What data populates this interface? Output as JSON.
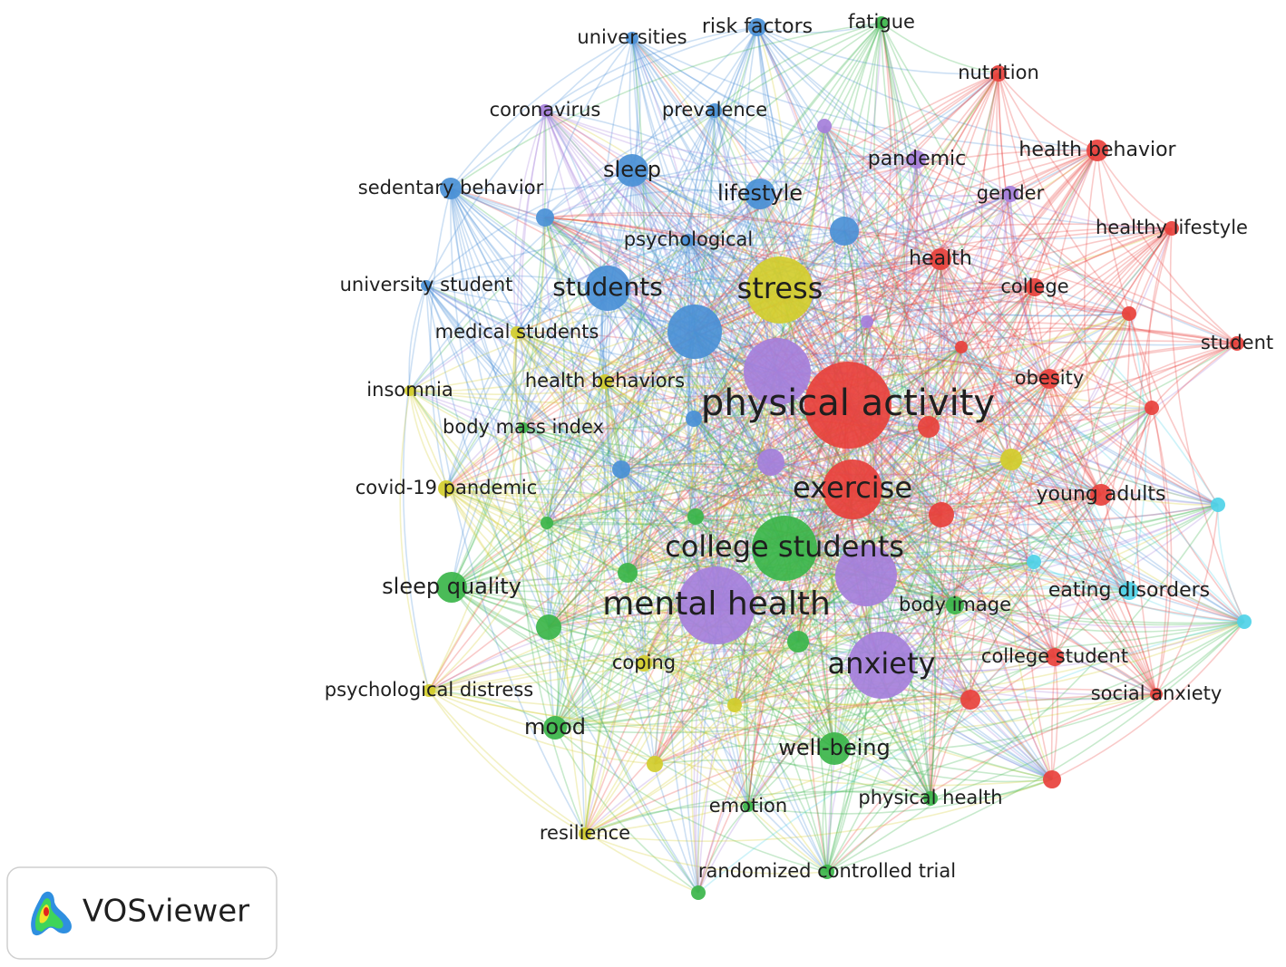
{
  "nodes": [
    {
      "label": "physical activity",
      "color": "#e8413c"
    },
    {
      "label": "exercise",
      "color": "#e8413c"
    },
    {
      "label": "stress",
      "color": "#d3cd2c"
    },
    {
      "label": "mental health",
      "color": "#a57fdb"
    },
    {
      "label": "college students",
      "color": "#3bb54a"
    },
    {
      "label": "anxiety",
      "color": "#a57fdb"
    },
    {
      "label": "students",
      "color": "#4a90d6"
    },
    {
      "label": "sleep",
      "color": "#4a90d6"
    },
    {
      "label": "lifestyle",
      "color": "#4a90d6"
    },
    {
      "label": "sleep quality",
      "color": "#3bb54a"
    },
    {
      "label": "mood",
      "color": "#3bb54a"
    },
    {
      "label": "well-being",
      "color": "#3bb54a"
    },
    {
      "label": "risk factors",
      "color": "#4a90d6"
    },
    {
      "label": "universities",
      "color": "#4a90d6"
    },
    {
      "label": "fatigue",
      "color": "#3bb54a"
    },
    {
      "label": "nutrition",
      "color": "#e8413c"
    },
    {
      "label": "coronavirus",
      "color": "#a57fdb"
    },
    {
      "label": "prevalence",
      "color": "#4a90d6"
    },
    {
      "label": "pandemic",
      "color": "#a57fdb"
    },
    {
      "label": "health behavior",
      "color": "#e8413c"
    },
    {
      "label": "sedentary behavior",
      "color": "#4a90d6"
    },
    {
      "label": "gender",
      "color": "#a57fdb"
    },
    {
      "label": "healthy lifestyle",
      "color": "#e8413c"
    },
    {
      "label": "psychological",
      "color": "#4a90d6"
    },
    {
      "label": "health",
      "color": "#e8413c"
    },
    {
      "label": "university student",
      "color": "#4a90d6"
    },
    {
      "label": "college",
      "color": "#e8413c"
    },
    {
      "label": "student",
      "color": "#e8413c"
    },
    {
      "label": "medical students",
      "color": "#d3cd2c"
    },
    {
      "label": "insomnia",
      "color": "#d3cd2c"
    },
    {
      "label": "obesity",
      "color": "#e8413c"
    },
    {
      "label": "health behaviors",
      "color": "#d3cd2c"
    },
    {
      "label": "body mass index",
      "color": "#3bb54a"
    },
    {
      "label": "covid-19 pandemic",
      "color": "#d3cd2c"
    },
    {
      "label": "young adults",
      "color": "#e8413c"
    },
    {
      "label": "eating disorders",
      "color": "#4fd3e8"
    },
    {
      "label": "body image",
      "color": "#3bb54a"
    },
    {
      "label": "coping",
      "color": "#d3cd2c"
    },
    {
      "label": "college student",
      "color": "#e8413c"
    },
    {
      "label": "psychological distress",
      "color": "#d3cd2c"
    },
    {
      "label": "social anxiety",
      "color": "#e8413c"
    },
    {
      "label": "physical health",
      "color": "#3bb54a"
    },
    {
      "label": "emotion",
      "color": "#3bb54a"
    },
    {
      "label": "resilience",
      "color": "#d3cd2c"
    },
    {
      "label": "randomized controlled trial",
      "color": "#3bb54a"
    }
  ],
  "logo": {
    "text": "VOSviewer"
  }
}
